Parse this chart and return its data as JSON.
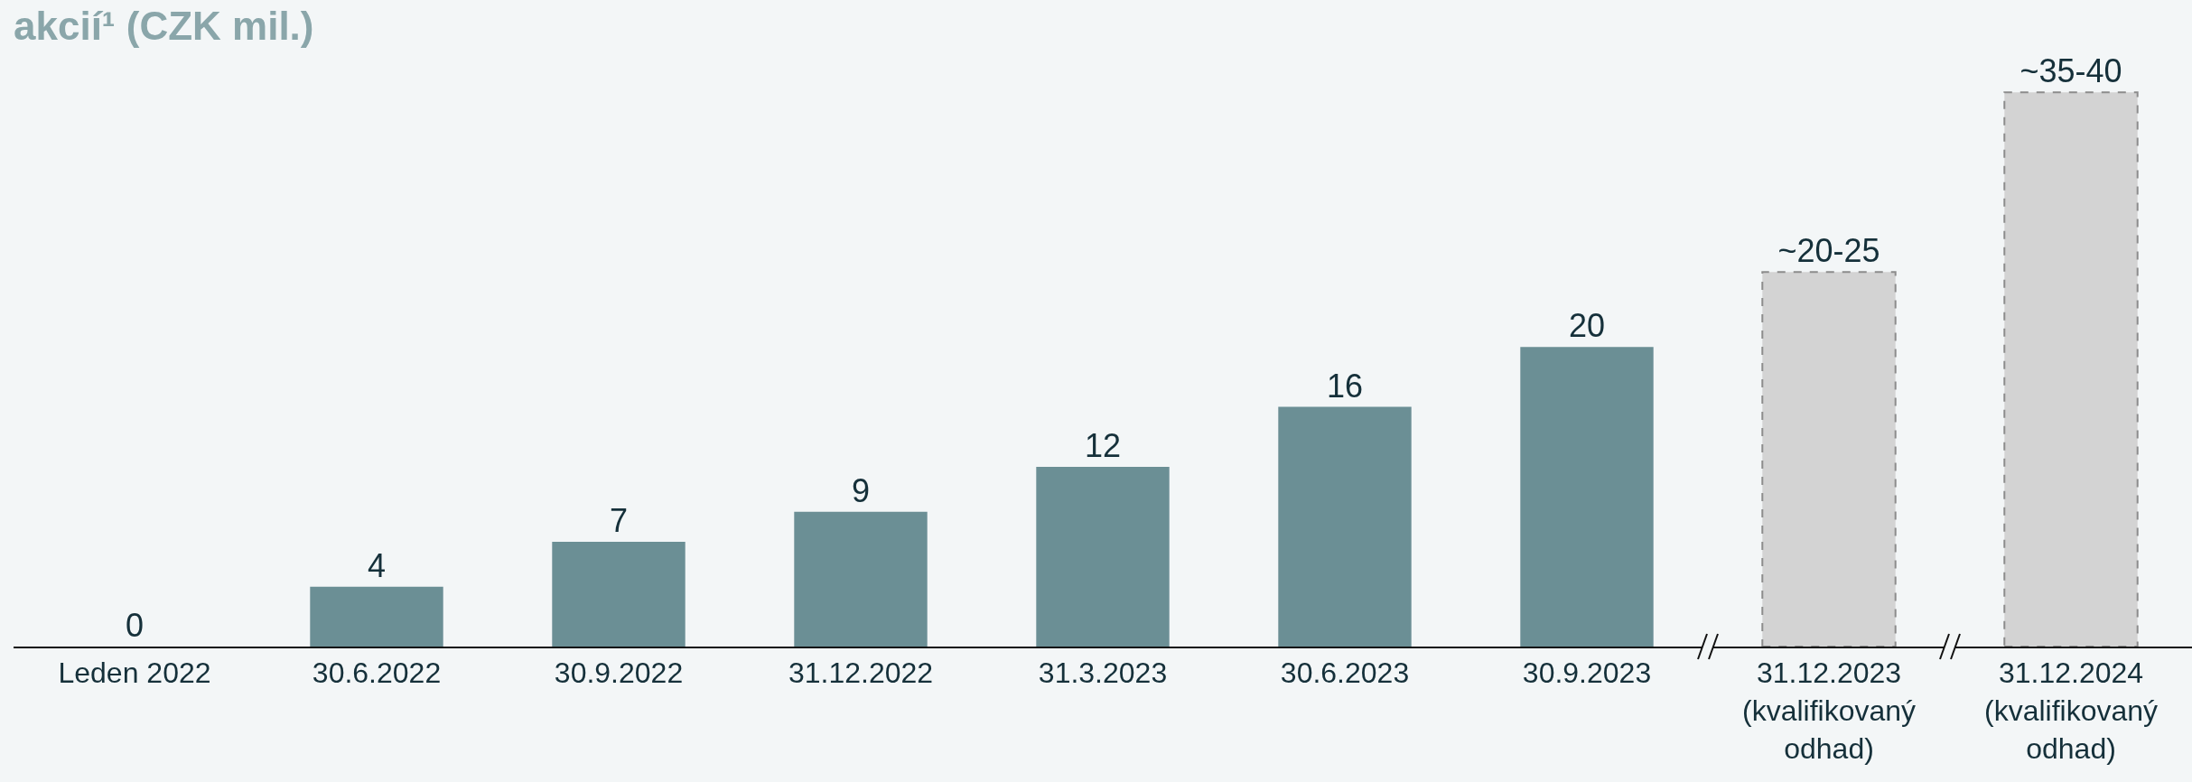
{
  "chart_data": {
    "type": "bar",
    "title": "akcií¹ (CZK mil.)",
    "categories": [
      "Leden 2022",
      "30.6.2022",
      "30.9.2022",
      "31.12.2022",
      "31.3.2023",
      "30.6.2023",
      "30.9.2023",
      "31.12.2023\n(kvalifikovaný\nodhad)",
      "31.12.2024\n(kvalifikovaný\nodhad)"
    ],
    "series": [
      {
        "color": "#6b8f95",
        "values": [
          0,
          4,
          7,
          9,
          12,
          16,
          20,
          null,
          null
        ],
        "value_labels": [
          "0",
          "4",
          "7",
          "9",
          "12",
          "16",
          "20",
          null,
          null
        ]
      },
      {
        "color": "#d3d3d3",
        "line_style": "dashed",
        "values": [
          null,
          null,
          null,
          null,
          null,
          null,
          null,
          25,
          37
        ],
        "value_labels": [
          null,
          null,
          null,
          null,
          null,
          null,
          null,
          "~20-25",
          "~35-40"
        ]
      }
    ],
    "grid": false,
    "legend": false
  }
}
